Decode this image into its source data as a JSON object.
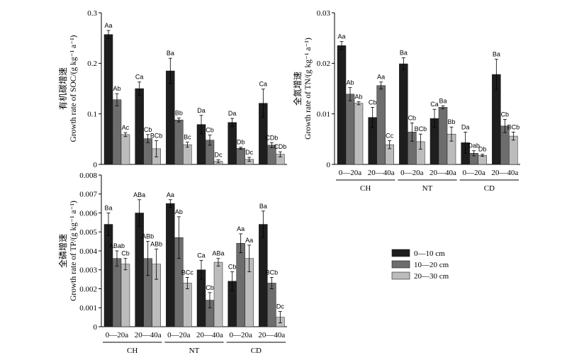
{
  "legend": {
    "items": [
      {
        "label": "0—10 cm",
        "color": "#1e1e1e"
      },
      {
        "label": "10—20 cm",
        "color": "#6d6d6d"
      },
      {
        "label": "20—30 cm",
        "color": "#bcbcbc"
      }
    ]
  },
  "chart_data": [
    {
      "type": "bar",
      "ylabel_cn": "有机碳增速",
      "ylabel": "Growth rate of SOC/(g kg⁻¹ a⁻¹)",
      "ylim": [
        0,
        0.3
      ],
      "yticks": [
        "0",
        "0.1",
        "0.2",
        "0.3"
      ],
      "series": [
        {
          "values": [
            0.257,
            0.15,
            0.185,
            0.079,
            0.083,
            0.121
          ],
          "errors": [
            0.008,
            0.013,
            0.025,
            0.018,
            0.008,
            0.028
          ],
          "letters": [
            "Aa",
            "Ca",
            "Ba",
            "Da",
            "Da",
            "Ca"
          ]
        },
        {
          "values": [
            0.128,
            0.051,
            0.088,
            0.048,
            0.032,
            0.038
          ],
          "errors": [
            0.012,
            0.008,
            0.004,
            0.01,
            0.002,
            0.005
          ],
          "letters": [
            "Ab",
            "Cb",
            "Bb",
            "Cb",
            "Db",
            "CDb"
          ]
        },
        {
          "values": [
            0.059,
            0.031,
            0.039,
            0.006,
            0.01,
            0.02
          ],
          "errors": [
            0.004,
            0.016,
            0.005,
            0.003,
            0.004,
            0.005
          ],
          "letters": [
            "Ac",
            "BCb",
            "Bc",
            "Dc",
            "Dc",
            "CDb"
          ]
        }
      ]
    },
    {
      "type": "bar",
      "ylabel_cn": "全氮增速",
      "ylabel": "Growth rate of TN/(g kg⁻¹ a⁻¹)",
      "ylim": [
        0,
        0.03
      ],
      "yticks": [
        "0",
        "0.01",
        "0.02",
        "0.03"
      ],
      "categories": [
        "0—20a",
        "20—40a",
        "0—20a",
        "20—40a",
        "0—20a",
        "20—40a"
      ],
      "groups": [
        "CH",
        "NT",
        "CD"
      ],
      "series": [
        {
          "values": [
            0.0235,
            0.0093,
            0.0199,
            0.0091,
            0.0043,
            0.0178
          ],
          "errors": [
            0.0008,
            0.002,
            0.0012,
            0.0018,
            0.0021,
            0.003
          ],
          "letters": [
            "Aa",
            "Cb",
            "Ba",
            "Ca",
            "Da",
            "Ba"
          ]
        },
        {
          "values": [
            0.0139,
            0.0156,
            0.0064,
            0.0113,
            0.0022,
            0.0076
          ],
          "errors": [
            0.0013,
            0.0007,
            0.0018,
            0.0003,
            0.0005,
            0.0013
          ],
          "letters": [
            "Ab",
            "Aa",
            "Cb",
            "Ba",
            "Dab",
            "Cb"
          ]
        },
        {
          "values": [
            0.0121,
            0.0039,
            0.0045,
            0.006,
            0.0018,
            0.0056
          ],
          "errors": [
            0.0003,
            0.0008,
            0.0015,
            0.0014,
            0.0002,
            0.0008
          ],
          "letters": [
            "Ab",
            "Cc",
            "BCb",
            "Bb",
            "Db",
            "BCb"
          ]
        }
      ]
    },
    {
      "type": "bar",
      "ylabel_cn": "全磷增速",
      "ylabel": "Growth rate of TP/(g kg⁻¹ a⁻¹)",
      "ylim": [
        0,
        0.008
      ],
      "yticks": [
        "0",
        "0.001",
        "0.002",
        "0.003",
        "0.004",
        "0.005",
        "0.006",
        "0.007",
        "0.008"
      ],
      "categories": [
        "0—20a",
        "20—40a",
        "0—20a",
        "20—40a",
        "0—20a",
        "20—40a"
      ],
      "groups": [
        "CH",
        "NT",
        "CD"
      ],
      "series": [
        {
          "values": [
            0.0054,
            0.006,
            0.0065,
            0.003,
            0.0024,
            0.0054
          ],
          "errors": [
            0.0006,
            0.0007,
            0.0002,
            0.0005,
            0.0005,
            0.0007
          ],
          "letters": [
            "Ba",
            "ABa",
            "Aa",
            "Ca",
            "Cb",
            "Ba"
          ]
        },
        {
          "values": [
            0.0036,
            0.0036,
            0.0047,
            0.0014,
            0.0044,
            0.0023
          ],
          "errors": [
            0.0004,
            0.0009,
            0.0011,
            0.0004,
            0.0005,
            0.0003
          ],
          "letters": [
            "ABab",
            "ABb",
            "Ab",
            "Cb",
            "Aa",
            "BCb"
          ]
        },
        {
          "values": [
            0.0033,
            0.0033,
            0.0023,
            0.0034,
            0.0036,
            0.0005
          ],
          "errors": [
            0.0003,
            0.0008,
            0.0003,
            0.0002,
            0.0007,
            0.0003
          ],
          "letters": [
            "Cb",
            "ABb",
            "BCc",
            "ABa",
            "Aa",
            "Dc"
          ]
        }
      ]
    }
  ]
}
